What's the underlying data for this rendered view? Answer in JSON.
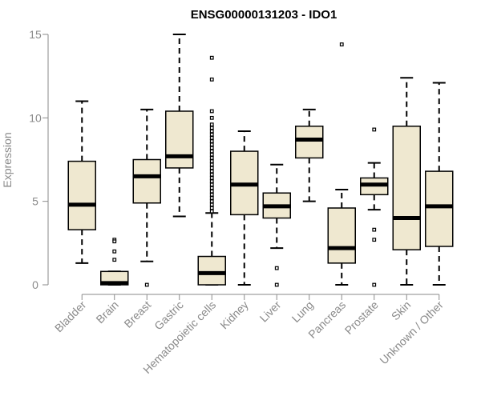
{
  "chart_data": {
    "type": "boxplot",
    "title": "ENSG00000131203 - IDO1",
    "xlabel": "",
    "ylabel": "Expression",
    "ylim": [
      0,
      15
    ],
    "yticks": [
      0,
      5,
      10,
      15
    ],
    "grid": false,
    "legend": "none",
    "box_fill": "#efe8d0",
    "line_color": "#000000",
    "axis_color": "#8a8a8a",
    "categories": [
      "Bladder",
      "Brain",
      "Breast",
      "Gastric",
      "Hematopoietic cells",
      "Kidney",
      "Liver",
      "Lung",
      "Pancreas",
      "Prostate",
      "Skin",
      "Unknown / Other"
    ],
    "boxes": [
      {
        "name": "Bladder",
        "whisker_low": 1.3,
        "q1": 3.3,
        "median": 4.8,
        "q3": 7.4,
        "whisker_high": 11.0,
        "outliers": []
      },
      {
        "name": "Brain",
        "whisker_low": 0.0,
        "q1": 0.0,
        "median": 0.1,
        "q3": 0.8,
        "whisker_high": 0.8,
        "outliers": [
          2.7,
          2.6,
          2.0,
          1.5
        ]
      },
      {
        "name": "Breast",
        "whisker_low": 1.4,
        "q1": 4.9,
        "median": 6.5,
        "q3": 7.5,
        "whisker_high": 10.5,
        "outliers": [
          0.0
        ]
      },
      {
        "name": "Gastric",
        "whisker_low": 4.1,
        "q1": 7.0,
        "median": 7.7,
        "q3": 10.4,
        "whisker_high": 15.0,
        "outliers": []
      },
      {
        "name": "Hematopoietic cells",
        "whisker_low": 0.0,
        "q1": 0.0,
        "median": 0.7,
        "q3": 1.7,
        "whisker_high": 4.3,
        "outliers": [
          4.4,
          4.6,
          4.8,
          5.0,
          5.2,
          5.4,
          5.6,
          5.8,
          6.0,
          6.2,
          6.4,
          6.6,
          6.8,
          7.0,
          7.2,
          7.4,
          7.6,
          7.8,
          8.0,
          8.2,
          8.4,
          8.6,
          8.8,
          9.0,
          9.2,
          9.4,
          9.6,
          10.0,
          10.4,
          12.3,
          13.6
        ]
      },
      {
        "name": "Kidney",
        "whisker_low": 0.0,
        "q1": 4.2,
        "median": 6.0,
        "q3": 8.0,
        "whisker_high": 9.2,
        "outliers": []
      },
      {
        "name": "Liver",
        "whisker_low": 2.2,
        "q1": 4.0,
        "median": 4.7,
        "q3": 5.5,
        "whisker_high": 7.2,
        "outliers": [
          1.0,
          0.0
        ]
      },
      {
        "name": "Lung",
        "whisker_low": 5.0,
        "q1": 7.6,
        "median": 8.7,
        "q3": 9.5,
        "whisker_high": 10.5,
        "outliers": []
      },
      {
        "name": "Pancreas",
        "whisker_low": 0.0,
        "q1": 1.3,
        "median": 2.2,
        "q3": 4.6,
        "whisker_high": 5.7,
        "outliers": [
          14.4
        ]
      },
      {
        "name": "Prostate",
        "whisker_low": 4.5,
        "q1": 5.4,
        "median": 6.0,
        "q3": 6.4,
        "whisker_high": 7.3,
        "outliers": [
          9.3,
          3.3,
          2.7,
          0.0
        ]
      },
      {
        "name": "Skin",
        "whisker_low": 0.0,
        "q1": 2.1,
        "median": 4.0,
        "q3": 9.5,
        "whisker_high": 12.4,
        "outliers": []
      },
      {
        "name": "Unknown / Other",
        "whisker_low": 0.0,
        "q1": 2.3,
        "median": 4.7,
        "q3": 6.8,
        "whisker_high": 12.1,
        "outliers": []
      }
    ]
  }
}
